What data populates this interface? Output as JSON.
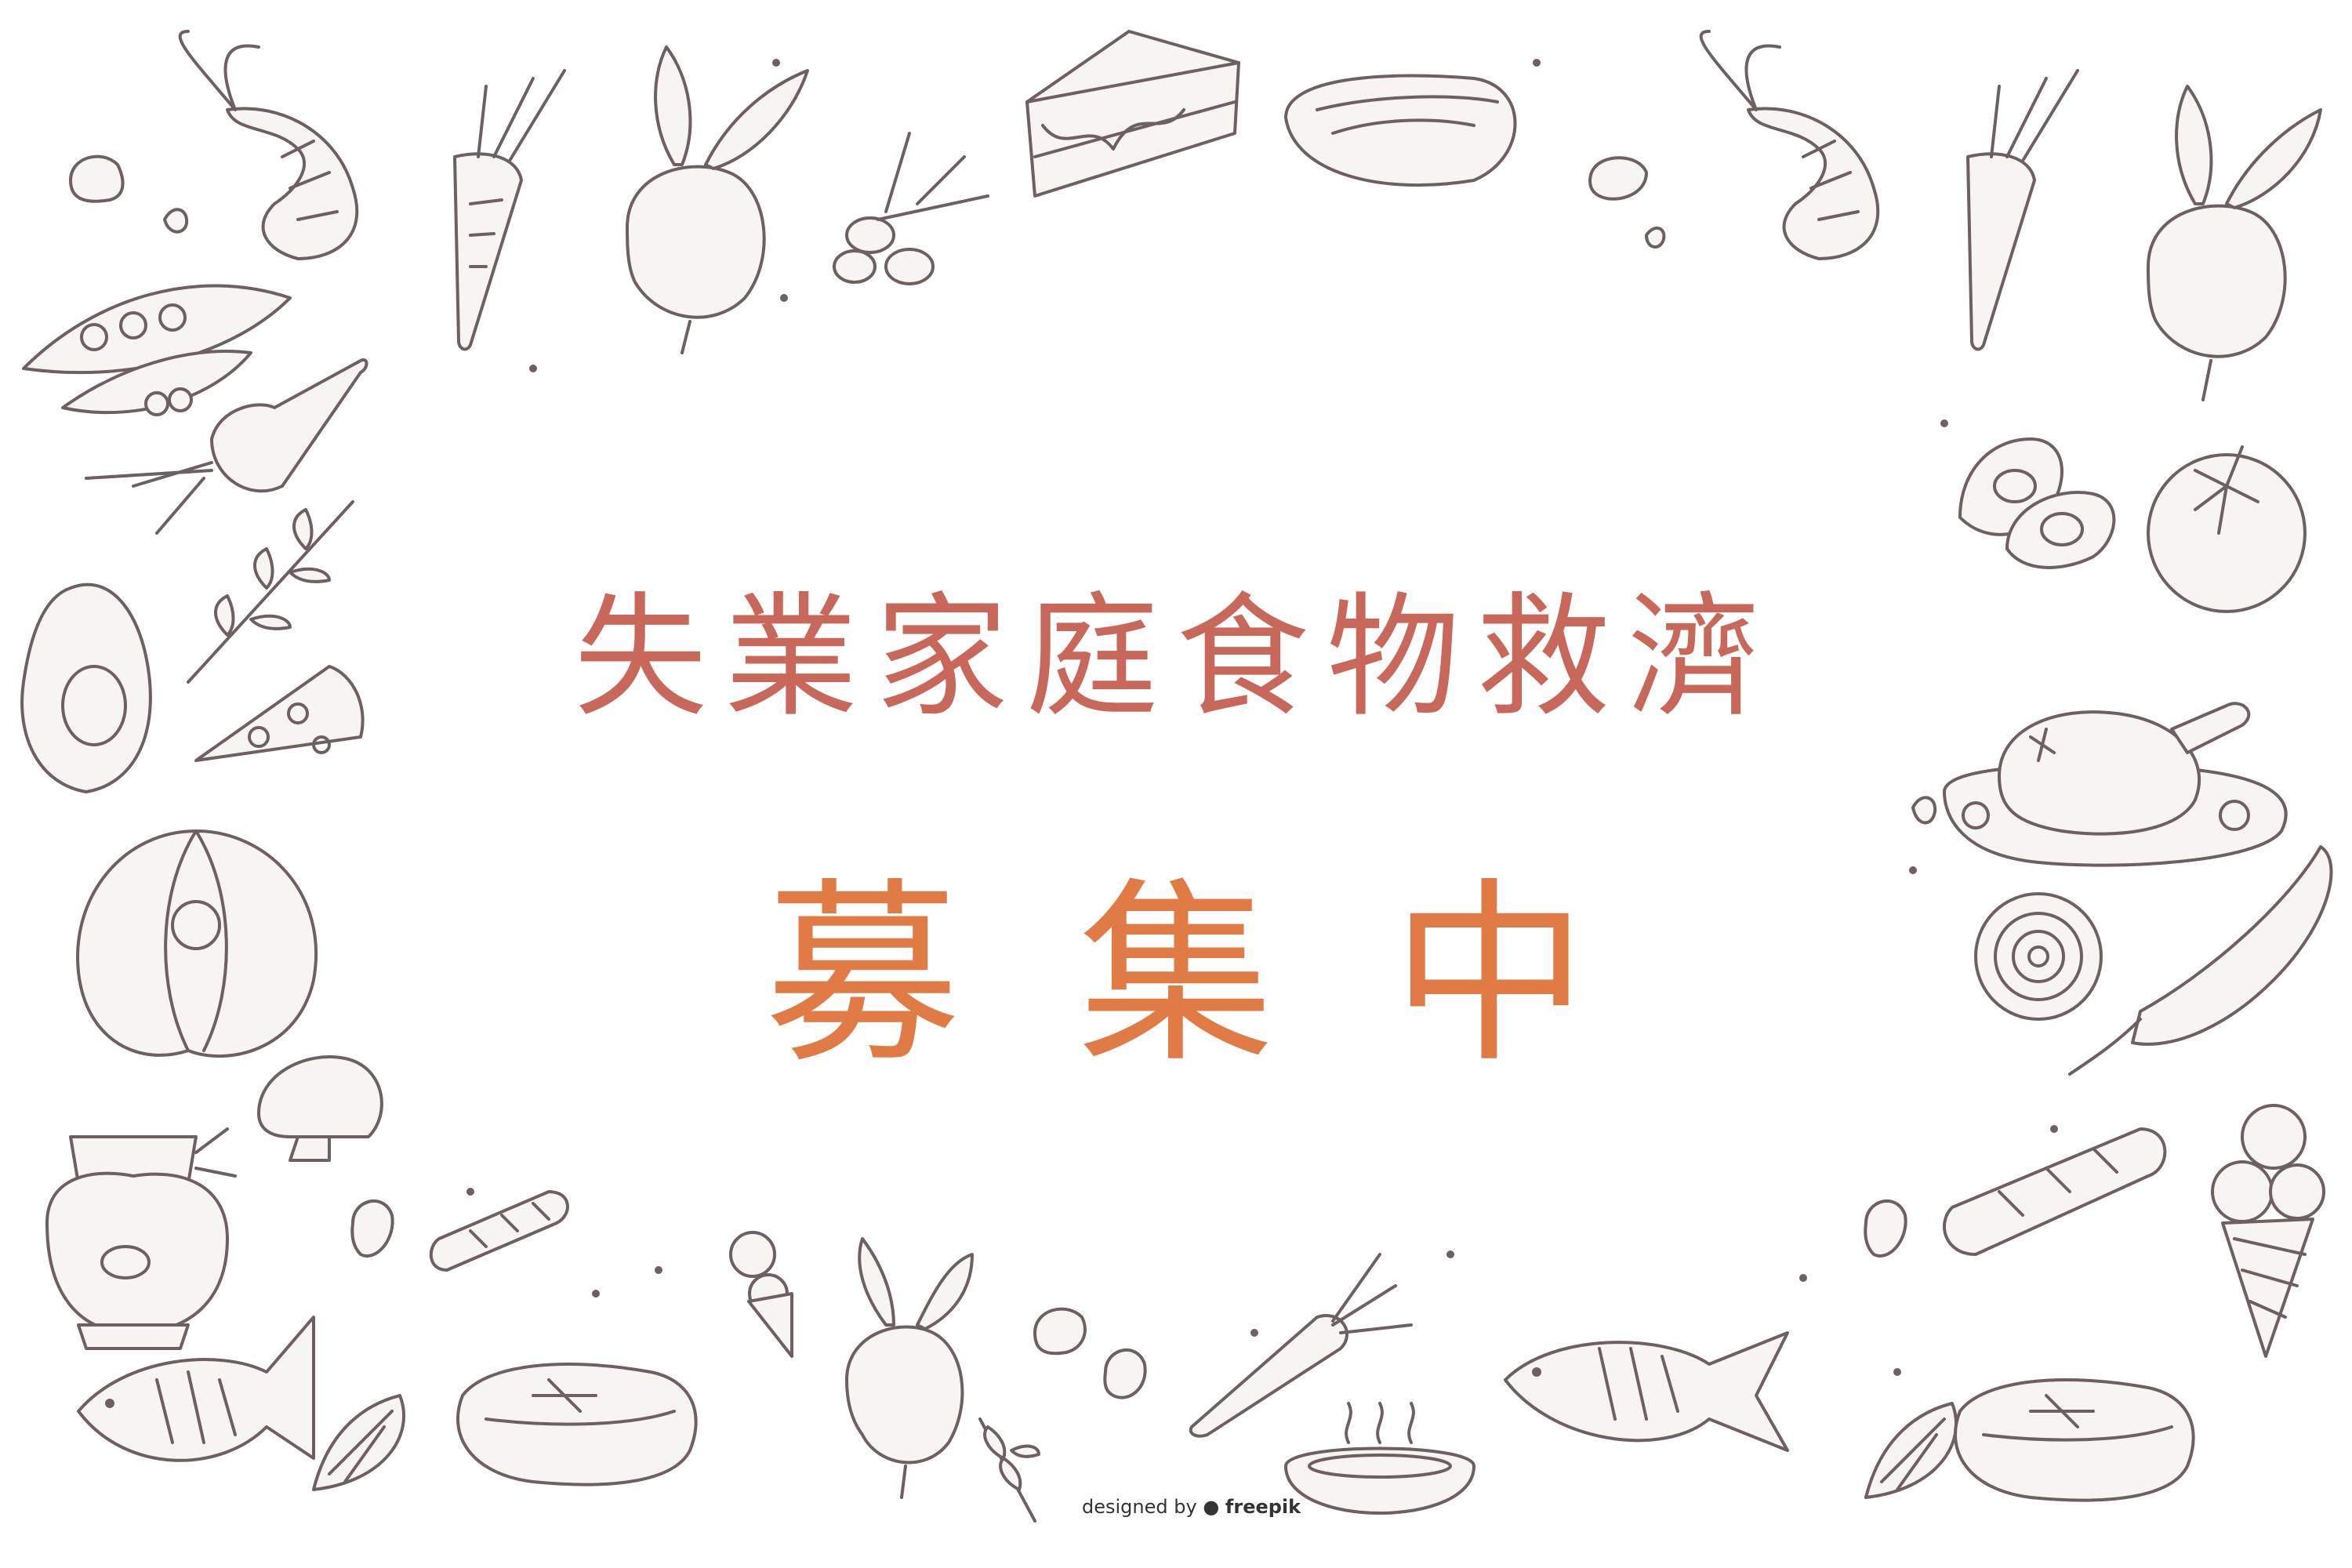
{
  "background_color": "#ffffff",
  "outline_color": "#6e5f62",
  "fill_color": "#f7f5f1",
  "headline": {
    "line1": "失業家庭食物救濟",
    "line1_color": "#c8685a",
    "line2": "募集中",
    "line2_color": "#e07b45"
  },
  "credit": {
    "prefix": "designed by",
    "brand": "freepik"
  },
  "doodle_icons": [
    "shrimp-icon",
    "carrot-icon",
    "beet-icon",
    "cake-slice-icon",
    "hotdog-icon",
    "olive-branch-icon",
    "pea-pod-icon",
    "bean-icon",
    "avocado-icon",
    "herb-sprig-icon",
    "pizza-slice-icon",
    "pumpkin-icon",
    "mushroom-icon",
    "honey-jar-icon",
    "fish-icon",
    "lemon-wedge-icon",
    "steak-icon",
    "bread-loaf-icon",
    "ice-cream-cone-icon",
    "soup-bowl-icon",
    "egg-halves-icon",
    "tomato-icon",
    "roast-chicken-icon",
    "onion-slice-icon",
    "chili-pepper-icon"
  ]
}
